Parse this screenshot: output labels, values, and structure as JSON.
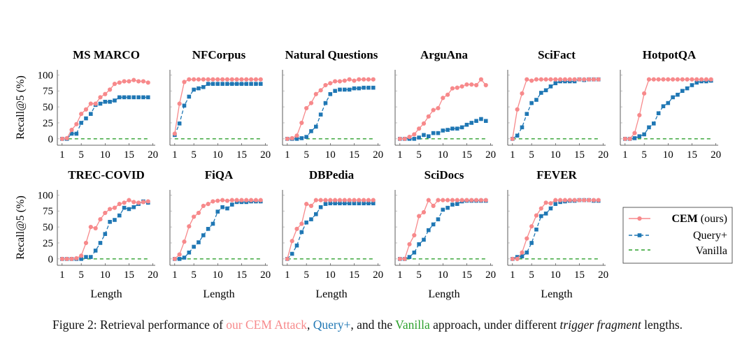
{
  "colors": {
    "cem": "#f7898b",
    "query_plus": "#1f77b4",
    "vanilla": "#2ca02c",
    "axis": "#333333"
  },
  "caption": {
    "prefix": "Figure 2: Retrieval performance of ",
    "cem": "our CEM Attack",
    "sep1": ", ",
    "query": "Query+",
    "sep2": ", and the ",
    "vanilla": "Vanilla",
    "sep3": " approach, under different ",
    "italic": "trigger fragment",
    "suffix": " lengths."
  },
  "legend": {
    "cem_bold": "CEM",
    "cem_rest": " (ours)",
    "query": "Query+",
    "vanilla": "Vanilla"
  },
  "chart_data": {
    "type": "line",
    "ylabel": "Recall@5 (%)",
    "xlabel": "Length",
    "xticks": [
      1,
      5,
      10,
      15,
      20
    ],
    "yticks": [
      0,
      25,
      50,
      75,
      100
    ],
    "xlim": [
      0,
      20.5
    ],
    "ylim": [
      -10,
      108
    ],
    "x": [
      1,
      2,
      3,
      4,
      5,
      6,
      7,
      8,
      9,
      10,
      11,
      12,
      13,
      14,
      15,
      16,
      17,
      18,
      19
    ],
    "grid": false,
    "legend_placement": "right",
    "panels": [
      {
        "title": "MS MARCO",
        "series": [
          {
            "name": "CEM (ours)",
            "values": [
              0,
              1,
              14,
              23,
              39,
              46,
              55,
              55,
              65,
              70,
              77,
              86,
              88,
              90,
              90,
              92,
              90,
              90,
              88
            ]
          },
          {
            "name": "Query+",
            "values": [
              0,
              0,
              8,
              8,
              25,
              32,
              39,
              53,
              55,
              58,
              58,
              60,
              65,
              65,
              65,
              65,
              65,
              65,
              65
            ]
          },
          {
            "name": "Vanilla",
            "values": [
              0,
              0,
              0,
              0,
              0,
              0,
              0,
              0,
              0,
              0,
              0,
              0,
              0,
              0,
              0,
              0,
              0,
              0,
              0
            ]
          }
        ]
      },
      {
        "title": "NFCorpus",
        "series": [
          {
            "name": "CEM (ours)",
            "values": [
              8,
              55,
              89,
              93,
              93,
              93,
              93,
              93,
              93,
              93,
              93,
              93,
              93,
              93,
              93,
              93,
              93,
              93,
              93
            ]
          },
          {
            "name": "Query+",
            "values": [
              6,
              24,
              52,
              66,
              77,
              79,
              81,
              86,
              86,
              86,
              86,
              86,
              86,
              86,
              86,
              86,
              86,
              86,
              86
            ]
          },
          {
            "name": "Vanilla",
            "values": [
              0,
              0,
              0,
              0,
              0,
              0,
              0,
              0,
              0,
              0,
              0,
              0,
              0,
              0,
              0,
              0,
              0,
              0,
              0
            ]
          }
        ]
      },
      {
        "title": "Natural Questions",
        "series": [
          {
            "name": "CEM (ours)",
            "values": [
              0,
              1,
              5,
              25,
              48,
              56,
              70,
              76,
              84,
              87,
              90,
              90,
              91,
              93,
              91,
              93,
              93,
              93,
              93
            ]
          },
          {
            "name": "Query+",
            "values": [
              0,
              0,
              0,
              1,
              3,
              12,
              19,
              38,
              56,
              70,
              75,
              77,
              77,
              77,
              79,
              79,
              80,
              80,
              80
            ]
          },
          {
            "name": "Vanilla",
            "values": [
              0,
              0,
              0,
              0,
              0,
              0,
              0,
              0,
              0,
              0,
              0,
              0,
              0,
              0,
              0,
              0,
              0,
              0,
              0
            ]
          }
        ]
      },
      {
        "title": "ArguAna",
        "series": [
          {
            "name": "CEM (ours)",
            "values": [
              0,
              0,
              3,
              7,
              16,
              24,
              35,
              45,
              48,
              64,
              69,
              79,
              80,
              82,
              85,
              85,
              84,
              93,
              84
            ]
          },
          {
            "name": "Query+",
            "values": [
              0,
              0,
              0,
              0,
              2,
              6,
              4,
              9,
              9,
              13,
              14,
              16,
              16,
              18,
              22,
              25,
              28,
              31,
              28
            ]
          },
          {
            "name": "Vanilla",
            "values": [
              0,
              0,
              0,
              0,
              0,
              0,
              0,
              0,
              0,
              0,
              0,
              0,
              0,
              0,
              0,
              0,
              0,
              0,
              0
            ]
          }
        ]
      },
      {
        "title": "SciFact",
        "series": [
          {
            "name": "CEM (ours)",
            "values": [
              0,
              46,
              71,
              93,
              91,
              93,
              93,
              93,
              93,
              93,
              93,
              93,
              93,
              93,
              93,
              93,
              93,
              93,
              93
            ]
          },
          {
            "name": "Query+",
            "values": [
              0,
              5,
              18,
              39,
              56,
              61,
              72,
              76,
              82,
              87,
              90,
              90,
              90,
              90,
              93,
              92,
              93,
              93,
              93
            ]
          },
          {
            "name": "Vanilla",
            "values": [
              0,
              0,
              0,
              0,
              0,
              0,
              0,
              0,
              0,
              0,
              0,
              0,
              0,
              0,
              0,
              0,
              0,
              0,
              0
            ]
          }
        ]
      },
      {
        "title": "HotpotQA",
        "series": [
          {
            "name": "CEM (ours)",
            "values": [
              0,
              0,
              9,
              37,
              71,
              93,
              93,
              93,
              93,
              93,
              93,
              93,
              93,
              93,
              93,
              93,
              93,
              93,
              93
            ]
          },
          {
            "name": "Query+",
            "values": [
              0,
              0,
              1,
              4,
              7,
              18,
              24,
              40,
              51,
              56,
              65,
              69,
              75,
              79,
              84,
              88,
              90,
              90,
              91
            ]
          },
          {
            "name": "Vanilla",
            "values": [
              0,
              0,
              0,
              0,
              0,
              0,
              0,
              0,
              0,
              0,
              0,
              0,
              0,
              0,
              0,
              0,
              0,
              0,
              0
            ]
          }
        ]
      },
      {
        "title": "TREC-COVID",
        "series": [
          {
            "name": "CEM (ours)",
            "values": [
              0,
              0,
              0,
              1,
              5,
              25,
              50,
              48,
              62,
              72,
              78,
              80,
              86,
              88,
              92,
              89,
              88,
              89,
              90
            ]
          },
          {
            "name": "Query+",
            "values": [
              0,
              0,
              0,
              0,
              0,
              3,
              3,
              13,
              25,
              39,
              58,
              61,
              68,
              80,
              78,
              81,
              86,
              90,
              88
            ]
          },
          {
            "name": "Vanilla",
            "values": [
              0,
              0,
              0,
              0,
              0,
              0,
              0,
              0,
              0,
              0,
              0,
              0,
              0,
              0,
              0,
              0,
              0,
              0,
              0
            ]
          }
        ]
      },
      {
        "title": "FiQA",
        "series": [
          {
            "name": "CEM (ours)",
            "values": [
              0,
              7,
              27,
              51,
              66,
              72,
              83,
              86,
              90,
              91,
              92,
              91,
              92,
              92,
              92,
              92,
              92,
              92,
              92
            ]
          },
          {
            "name": "Query+",
            "values": [
              0,
              0,
              2,
              10,
              19,
              26,
              37,
              47,
              55,
              74,
              81,
              79,
              85,
              89,
              89,
              89,
              90,
              90,
              90
            ]
          },
          {
            "name": "Vanilla",
            "values": [
              0,
              0,
              0,
              0,
              0,
              0,
              0,
              0,
              0,
              0,
              0,
              0,
              0,
              0,
              0,
              0,
              0,
              0,
              0
            ]
          }
        ]
      },
      {
        "title": "DBPedia",
        "series": [
          {
            "name": "CEM (ours)",
            "values": [
              0,
              28,
              47,
              55,
              86,
              83,
              92,
              92,
              92,
              92,
              92,
              92,
              92,
              92,
              92,
              92,
              92,
              92,
              92
            ]
          },
          {
            "name": "Query+",
            "values": [
              0,
              8,
              21,
              42,
              57,
              62,
              70,
              81,
              86,
              87,
              87,
              87,
              87,
              87,
              87,
              87,
              87,
              87,
              87
            ]
          },
          {
            "name": "Vanilla",
            "values": [
              0,
              0,
              0,
              0,
              0,
              0,
              0,
              0,
              0,
              0,
              0,
              0,
              0,
              0,
              0,
              0,
              0,
              0,
              0
            ]
          }
        ]
      },
      {
        "title": "SciDocs",
        "series": [
          {
            "name": "CEM (ours)",
            "values": [
              0,
              0,
              23,
              37,
              67,
              73,
              92,
              83,
              92,
              92,
              92,
              92,
              92,
              92,
              92,
              92,
              92,
              92,
              92
            ]
          },
          {
            "name": "Query+",
            "values": [
              0,
              0,
              3,
              10,
              23,
              30,
              45,
              54,
              62,
              77,
              80,
              85,
              86,
              90,
              91,
              91,
              91,
              91,
              91
            ]
          },
          {
            "name": "Vanilla",
            "values": [
              0,
              0,
              0,
              0,
              0,
              0,
              0,
              0,
              0,
              0,
              0,
              0,
              0,
              0,
              0,
              0,
              0,
              0,
              0
            ]
          }
        ]
      },
      {
        "title": "FEVER",
        "series": [
          {
            "name": "CEM (ours)",
            "values": [
              0,
              0,
              10,
              32,
              51,
              68,
              79,
              88,
              87,
              92,
              92,
              92,
              92,
              92,
              92,
              92,
              92,
              92,
              92
            ]
          },
          {
            "name": "Query+",
            "values": [
              0,
              3,
              4,
              10,
              25,
              46,
              67,
              71,
              79,
              86,
              89,
              90,
              91,
              91,
              92,
              92,
              92,
              91,
              91
            ]
          },
          {
            "name": "Vanilla",
            "values": [
              0,
              0,
              0,
              0,
              0,
              0,
              0,
              0,
              0,
              0,
              0,
              0,
              0,
              0,
              0,
              0,
              0,
              0,
              0
            ]
          }
        ]
      }
    ]
  }
}
